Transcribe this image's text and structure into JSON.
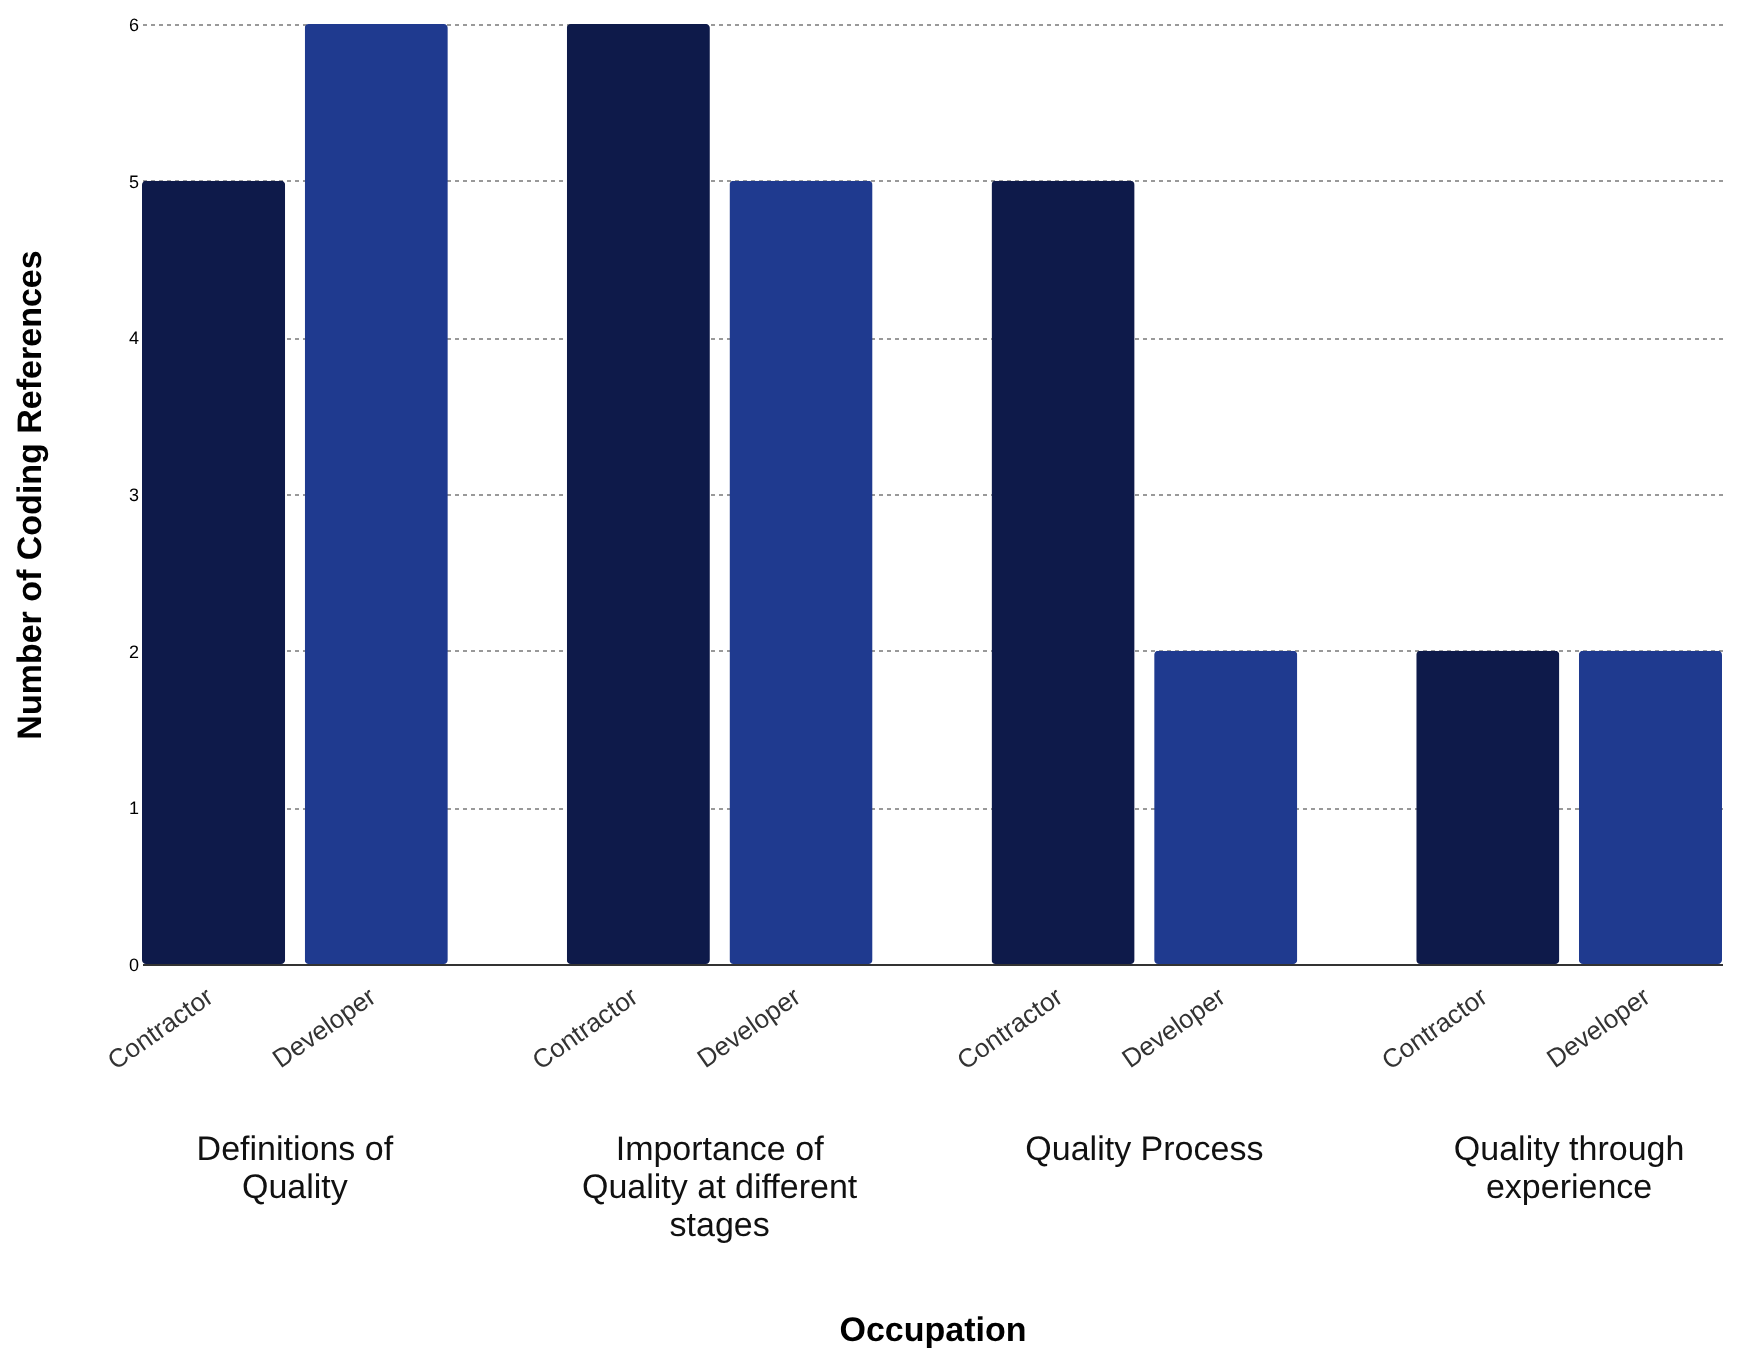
{
  "chart_data": {
    "type": "bar",
    "xlabel": "Occupation",
    "ylabel": "Number of Coding References",
    "categories": [
      "Definitions of Quality",
      "Importance of Quality at different stages",
      "Quality Process",
      "Quality through experience"
    ],
    "series": [
      {
        "name": "Contractor",
        "color": "#0e1a4a",
        "values": [
          5,
          6,
          5,
          2
        ]
      },
      {
        "name": "Developer",
        "color": "#1f3a8f",
        "values": [
          6,
          5,
          2,
          2
        ]
      }
    ],
    "ylim": [
      0,
      6
    ],
    "yticks": [
      0,
      1,
      2,
      3,
      4,
      5,
      6
    ],
    "grid": "y"
  }
}
